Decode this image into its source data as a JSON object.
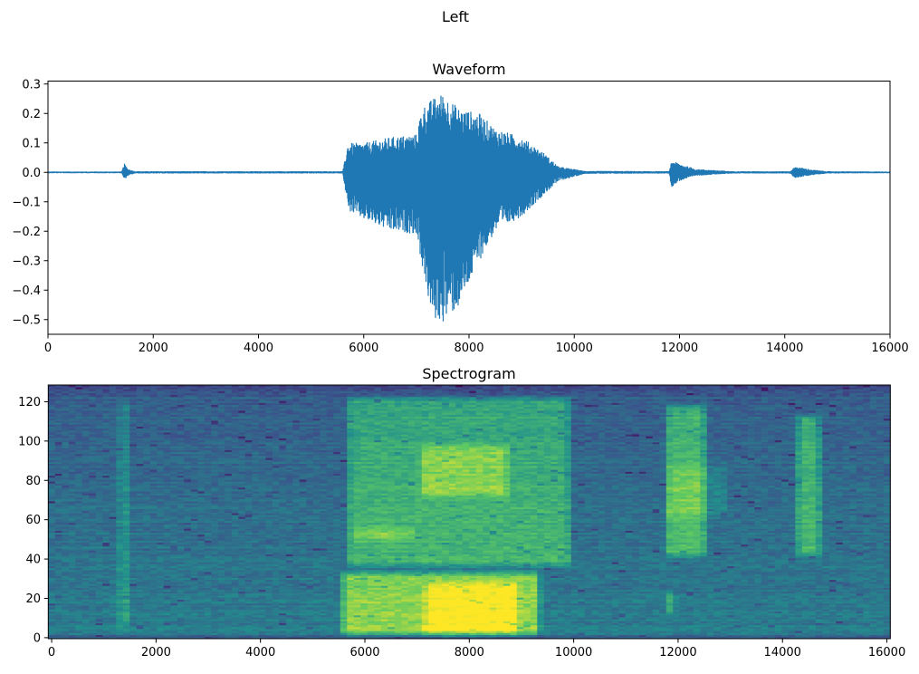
{
  "figure_title": "Left",
  "chart_data": [
    {
      "type": "line",
      "title": "Waveform",
      "xlabel": "",
      "ylabel": "",
      "xlim": [
        0,
        16000
      ],
      "ylim": [
        -0.55,
        0.31
      ],
      "grid": false,
      "color": "#1f77b4",
      "x_ticks": [
        "0",
        "2000",
        "4000",
        "6000",
        "8000",
        "10000",
        "12000",
        "14000",
        "16000"
      ],
      "y_ticks": [
        "0.3",
        "0.2",
        "0.1",
        "0.0",
        "−0.1",
        "−0.2",
        "−0.3",
        "−0.4",
        "−0.5"
      ],
      "envelope": {
        "columns": [
          "sample",
          "max",
          "min"
        ],
        "points": [
          [
            0,
            0.003,
            -0.003
          ],
          [
            1400,
            0.003,
            -0.003
          ],
          [
            1450,
            0.03,
            -0.025
          ],
          [
            1520,
            0.012,
            -0.012
          ],
          [
            1650,
            0.004,
            -0.004
          ],
          [
            5600,
            0.004,
            -0.004
          ],
          [
            5650,
            0.05,
            -0.06
          ],
          [
            5700,
            0.1,
            -0.13
          ],
          [
            6000,
            0.1,
            -0.16
          ],
          [
            6500,
            0.12,
            -0.2
          ],
          [
            7000,
            0.13,
            -0.21
          ],
          [
            7100,
            0.22,
            -0.31
          ],
          [
            7300,
            0.25,
            -0.5
          ],
          [
            7500,
            0.27,
            -0.51
          ],
          [
            7800,
            0.22,
            -0.46
          ],
          [
            8200,
            0.2,
            -0.3
          ],
          [
            8500,
            0.15,
            -0.2
          ],
          [
            9000,
            0.12,
            -0.15
          ],
          [
            9400,
            0.07,
            -0.08
          ],
          [
            9700,
            0.02,
            -0.03
          ],
          [
            10200,
            0.005,
            -0.005
          ],
          [
            11800,
            0.004,
            -0.004
          ],
          [
            11850,
            0.04,
            -0.05
          ],
          [
            12000,
            0.03,
            -0.03
          ],
          [
            12300,
            0.012,
            -0.012
          ],
          [
            13000,
            0.004,
            -0.004
          ],
          [
            14100,
            0.004,
            -0.004
          ],
          [
            14200,
            0.02,
            -0.02
          ],
          [
            14500,
            0.01,
            -0.01
          ],
          [
            14800,
            0.004,
            -0.004
          ],
          [
            16000,
            0.003,
            -0.003
          ]
        ]
      }
    },
    {
      "type": "heatmap",
      "title": "Spectrogram",
      "xlabel": "",
      "ylabel": "",
      "xlim": [
        -65,
        16065
      ],
      "ylim": [
        -0.5,
        128.5
      ],
      "frames": 124,
      "bins": 129,
      "colormap": "viridis",
      "x_ticks": [
        "0",
        "2000",
        "4000",
        "6000",
        "8000",
        "10000",
        "12000",
        "14000",
        "16000"
      ],
      "y_ticks": [
        "0",
        "20",
        "40",
        "60",
        "80",
        "100",
        "120"
      ],
      "background_level": {
        "low_bin": 0.42,
        "high_bin": 0.3,
        "top_bin": 0.2
      },
      "energy_regions": [
        {
          "time": [
            1250,
            1500
          ],
          "bins": [
            3,
            122
          ],
          "level": 0.3
        },
        {
          "time": [
            5500,
            9400
          ],
          "bins": [
            0,
            35
          ],
          "level": 0.42
        },
        {
          "time": [
            7100,
            9000
          ],
          "bins": [
            0,
            30
          ],
          "level": 0.2
        },
        {
          "time": [
            5600,
            10000
          ],
          "bins": [
            35,
            124
          ],
          "level": 0.28
        },
        {
          "time": [
            7000,
            8800
          ],
          "bins": [
            70,
            100
          ],
          "level": 0.2
        },
        {
          "time": [
            5700,
            7000
          ],
          "bins": [
            48,
            58
          ],
          "level": 0.15
        },
        {
          "time": [
            11700,
            12600
          ],
          "bins": [
            40,
            120
          ],
          "level": 0.33
        },
        {
          "time": [
            11700,
            13000
          ],
          "bins": [
            60,
            90
          ],
          "level": 0.1
        },
        {
          "time": [
            11700,
            12000
          ],
          "bins": [
            10,
            25
          ],
          "level": 0.2
        },
        {
          "time": [
            14200,
            14800
          ],
          "bins": [
            40,
            115
          ],
          "level": 0.3
        }
      ]
    }
  ]
}
